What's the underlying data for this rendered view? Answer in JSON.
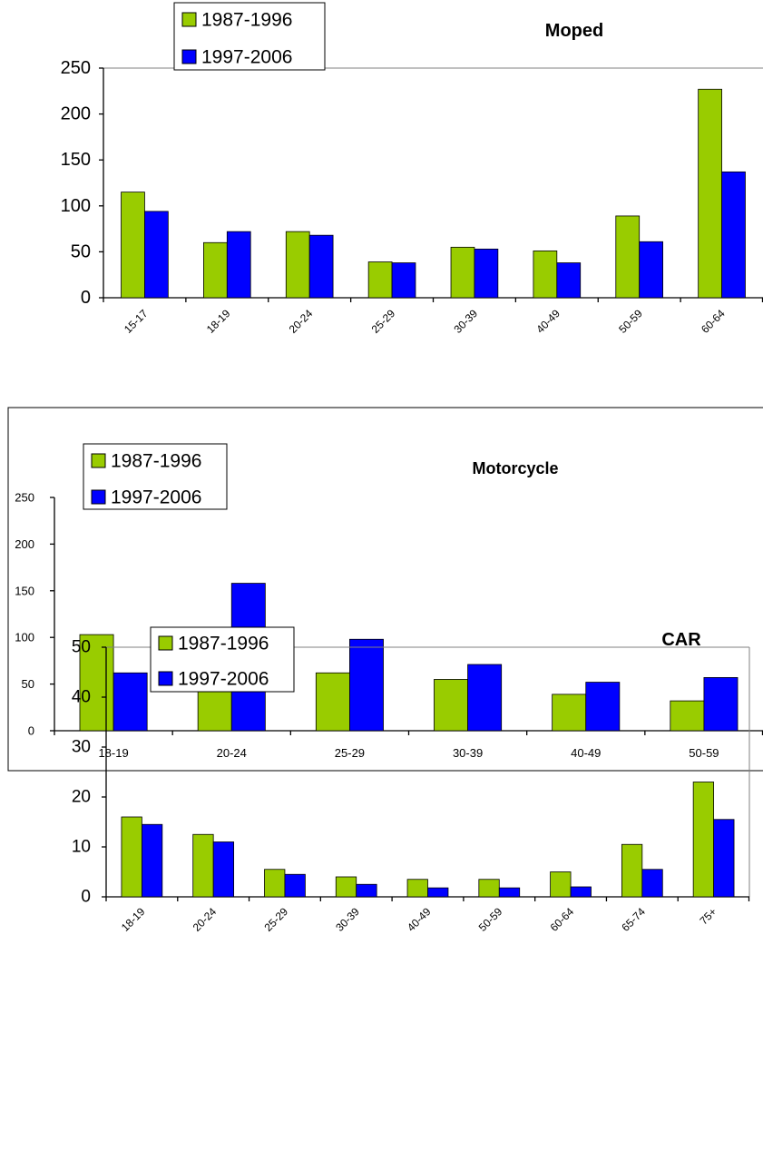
{
  "chart_data": [
    {
      "type": "bar",
      "title": "Moped",
      "categories": [
        "15-17",
        "18-19",
        "20-24",
        "25-29",
        "30-39",
        "40-49",
        "50-59",
        "60-64"
      ],
      "series": [
        {
          "name": "1987-1996",
          "values": [
            115,
            60,
            72,
            39,
            55,
            51,
            89,
            227
          ]
        },
        {
          "name": "1997-2006",
          "values": [
            94,
            72,
            68,
            38,
            53,
            38,
            61,
            137
          ]
        }
      ],
      "yticks": [
        "0",
        "50",
        "100",
        "150",
        "200",
        "250"
      ],
      "ylim": [
        0,
        250
      ],
      "legend": "top-left",
      "colors": [
        "#99cc00",
        "#0000ff"
      ]
    },
    {
      "type": "bar",
      "title": "Motorcycle",
      "categories": [
        "18-19",
        "20-24",
        "25-29",
        "30-39",
        "40-49",
        "50-59"
      ],
      "series": [
        {
          "name": "1987-1996",
          "values": [
            103,
            84,
            62,
            55,
            39,
            32
          ]
        },
        {
          "name": "1997-2006",
          "values": [
            62,
            158,
            98,
            71,
            52,
            57
          ]
        }
      ],
      "yticks": [
        "0",
        "50",
        "100",
        "150",
        "200",
        "250"
      ],
      "ylim": [
        0,
        250
      ],
      "legend": "top-left",
      "colors": [
        "#99cc00",
        "#0000ff"
      ]
    },
    {
      "type": "bar",
      "title": "CAR",
      "categories": [
        "18-19",
        "20-24",
        "25-29",
        "30-39",
        "40-49",
        "50-59",
        "60-64",
        "65-74",
        "75+"
      ],
      "series": [
        {
          "name": "1987-1996",
          "values": [
            16,
            12.5,
            5.5,
            4,
            3.5,
            3.5,
            5,
            10.5,
            23
          ]
        },
        {
          "name": "1997-2006",
          "values": [
            14.5,
            11,
            4.5,
            2.5,
            1.8,
            1.8,
            2,
            5.5,
            15.5
          ]
        }
      ],
      "yticks": [
        "0",
        "10",
        "20",
        "30",
        "40",
        "50"
      ],
      "ylim": [
        0,
        50
      ],
      "legend": "top-left",
      "colors": [
        "#99cc00",
        "#0000ff"
      ]
    }
  ]
}
